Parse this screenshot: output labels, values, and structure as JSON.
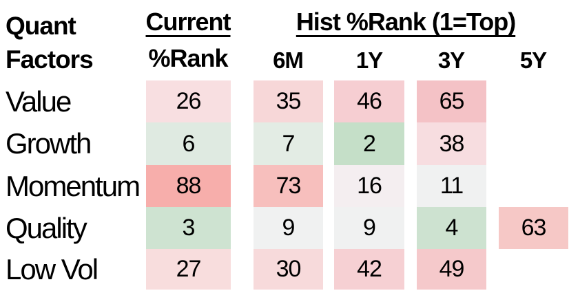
{
  "header": {
    "col1_line1": "Quant",
    "col1_line2": "Factors",
    "current_label": "Current",
    "current_sublabel": "%Rank",
    "hist_label": "Hist %Rank (1=Top)",
    "periods": [
      "6M",
      "1Y",
      "3Y",
      "5Y"
    ]
  },
  "rows": [
    {
      "label": "Value",
      "cells": [
        {
          "value": "26",
          "bg": "#f8dfe1"
        },
        {
          "value": "35",
          "bg": "#f7d7d8"
        },
        {
          "value": "46",
          "bg": "#f6ced2"
        },
        {
          "value": "65",
          "bg": "#f4c2c6"
        },
        {
          "value": "",
          "bg": null
        }
      ]
    },
    {
      "label": "Growth",
      "cells": [
        {
          "value": "6",
          "bg": "#dfeae1"
        },
        {
          "value": "7",
          "bg": "#e3ece4"
        },
        {
          "value": "2",
          "bg": "#c5dfc8"
        },
        {
          "value": "38",
          "bg": "#f7dde0"
        },
        {
          "value": "",
          "bg": null
        }
      ]
    },
    {
      "label": "Momentum",
      "cells": [
        {
          "value": "88",
          "bg": "#f7aeab"
        },
        {
          "value": "73",
          "bg": "#f7bfbd"
        },
        {
          "value": "16",
          "bg": "#f4eef0"
        },
        {
          "value": "11",
          "bg": "#f0f1f1"
        },
        {
          "value": "",
          "bg": null
        }
      ]
    },
    {
      "label": "Quality",
      "cells": [
        {
          "value": "3",
          "bg": "#cee3d1"
        },
        {
          "value": "9",
          "bg": "#f0f1f1"
        },
        {
          "value": "9",
          "bg": "#f0f1f1"
        },
        {
          "value": "4",
          "bg": "#cde2d0"
        },
        {
          "value": "63",
          "bg": "#f6c8c6"
        }
      ]
    },
    {
      "label": "Low Vol",
      "cells": [
        {
          "value": "27",
          "bg": "#f8dddd"
        },
        {
          "value": "30",
          "bg": "#f7dadb"
        },
        {
          "value": "42",
          "bg": "#f6d0d3"
        },
        {
          "value": "49",
          "bg": "#f5c9cb"
        },
        {
          "value": "",
          "bg": null
        }
      ]
    }
  ],
  "chart_data": {
    "type": "heatmap",
    "title": "Quant Factors",
    "subtitle": "Current %Rank / Hist %Rank (1=Top)",
    "rows": [
      "Value",
      "Growth",
      "Momentum",
      "Quality",
      "Low Vol"
    ],
    "columns": [
      "Current %Rank",
      "6M",
      "1Y",
      "3Y",
      "5Y"
    ],
    "values": [
      [
        26,
        35,
        46,
        65,
        null
      ],
      [
        6,
        7,
        2,
        38,
        null
      ],
      [
        88,
        73,
        16,
        11,
        null
      ],
      [
        3,
        9,
        9,
        4,
        63
      ],
      [
        27,
        30,
        42,
        49,
        null
      ]
    ],
    "color_scale": {
      "low_color": "#c5dfc8",
      "mid_color": "#f1f1f1",
      "high_color": "#f7aeab",
      "note": "green = low %Rank (top), red = high %Rank"
    },
    "legend_position": "none",
    "grid": false
  }
}
